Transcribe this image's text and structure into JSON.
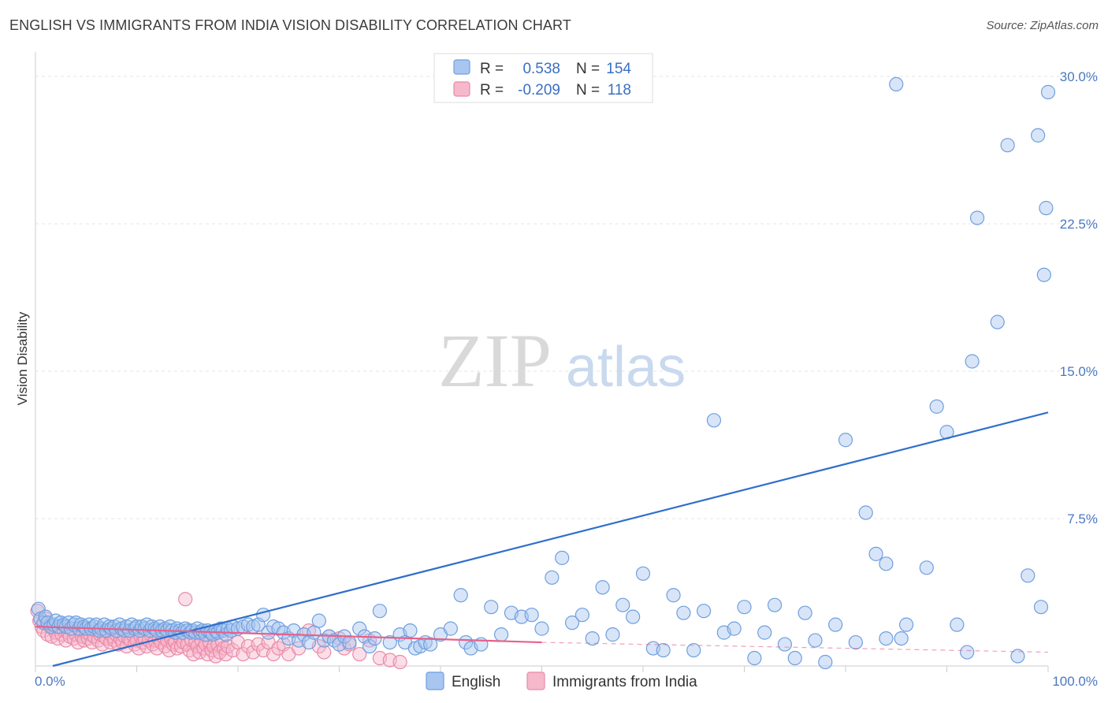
{
  "title": "ENGLISH VS IMMIGRANTS FROM INDIA VISION DISABILITY CORRELATION CHART",
  "source": "Source: ZipAtlas.com",
  "watermark": {
    "zip": "ZIP",
    "atlas": "atlas"
  },
  "colors": {
    "english_fill": "#a9c6f0",
    "english_stroke": "#6f9fde",
    "english_line": "#2f6fcc",
    "india_fill": "#f6b8cb",
    "india_stroke": "#e98aa8",
    "india_line": "#e8608a",
    "grid": "#e5e5e5",
    "tick_label": "#4a78c2"
  },
  "legend": {
    "rows": [
      {
        "r_label": "R =",
        "r_value": "0.538",
        "n_label": "N =",
        "n_value": "154"
      },
      {
        "r_label": "R =",
        "r_value": "-0.209",
        "n_label": "N =",
        "n_value": "118"
      }
    ]
  },
  "bottom_legend": [
    "English",
    "Immigrants from India"
  ],
  "chart_data": {
    "type": "scatter",
    "title": "ENGLISH VS IMMIGRANTS FROM INDIA VISION DISABILITY CORRELATION CHART",
    "xlabel": "",
    "ylabel": "Vision Disability",
    "xlim": [
      0,
      100
    ],
    "ylim": [
      0,
      31
    ],
    "x_tick_labels": [
      "0.0%",
      "100.0%"
    ],
    "y_ticks": [
      7.5,
      15.0,
      22.5,
      30.0
    ],
    "y_tick_labels": [
      "7.5%",
      "15.0%",
      "22.5%",
      "30.0%"
    ],
    "grid": true,
    "legend_position": "top-center",
    "series": [
      {
        "name": "English",
        "r": 0.538,
        "n": 154,
        "trend": {
          "x": [
            0,
            100
          ],
          "y": [
            0.0,
            12.9
          ]
        },
        "points": [
          [
            0.3,
            2.9
          ],
          [
            0.5,
            2.4
          ],
          [
            0.8,
            2.2
          ],
          [
            1.0,
            2.5
          ],
          [
            1.2,
            2.2
          ],
          [
            1.5,
            2.0
          ],
          [
            1.8,
            2.1
          ],
          [
            2.0,
            2.3
          ],
          [
            2.3,
            2.0
          ],
          [
            2.5,
            2.2
          ],
          [
            2.8,
            2.1
          ],
          [
            3.0,
            2.0
          ],
          [
            3.3,
            2.2
          ],
          [
            3.5,
            1.9
          ],
          [
            3.8,
            2.1
          ],
          [
            4.0,
            2.2
          ],
          [
            4.3,
            1.9
          ],
          [
            4.5,
            2.1
          ],
          [
            4.8,
            2.0
          ],
          [
            5.0,
            1.9
          ],
          [
            5.3,
            2.1
          ],
          [
            5.5,
            1.9
          ],
          [
            5.8,
            2.0
          ],
          [
            6.0,
            2.1
          ],
          [
            6.3,
            1.8
          ],
          [
            6.5,
            1.9
          ],
          [
            6.8,
            2.1
          ],
          [
            7.0,
            1.8
          ],
          [
            7.3,
            2.0
          ],
          [
            7.5,
            1.9
          ],
          [
            7.8,
            2.0
          ],
          [
            8.0,
            1.8
          ],
          [
            8.3,
            2.1
          ],
          [
            8.5,
            1.9
          ],
          [
            8.8,
            1.8
          ],
          [
            9.0,
            2.0
          ],
          [
            9.3,
            1.8
          ],
          [
            9.5,
            2.1
          ],
          [
            9.8,
            1.9
          ],
          [
            10.0,
            2.0
          ],
          [
            10.3,
            1.8
          ],
          [
            10.5,
            2.0
          ],
          [
            10.8,
            1.9
          ],
          [
            11.0,
            2.1
          ],
          [
            11.3,
            1.8
          ],
          [
            11.5,
            2.0
          ],
          [
            11.8,
            1.9
          ],
          [
            12.0,
            1.8
          ],
          [
            12.3,
            2.0
          ],
          [
            12.5,
            1.8
          ],
          [
            12.8,
            1.9
          ],
          [
            13.0,
            1.8
          ],
          [
            13.3,
            2.0
          ],
          [
            13.5,
            1.8
          ],
          [
            13.8,
            1.7
          ],
          [
            14.0,
            1.9
          ],
          [
            14.3,
            1.8
          ],
          [
            14.5,
            1.7
          ],
          [
            14.8,
            1.9
          ],
          [
            15.0,
            1.8
          ],
          [
            15.3,
            1.7
          ],
          [
            15.5,
            1.8
          ],
          [
            15.8,
            1.7
          ],
          [
            16.0,
            1.9
          ],
          [
            16.3,
            1.7
          ],
          [
            16.5,
            1.8
          ],
          [
            16.8,
            1.6
          ],
          [
            17.0,
            1.8
          ],
          [
            17.3,
            1.7
          ],
          [
            17.5,
            1.6
          ],
          [
            17.8,
            1.8
          ],
          [
            18.0,
            1.7
          ],
          [
            18.3,
            1.9
          ],
          [
            18.5,
            1.8
          ],
          [
            18.8,
            1.6
          ],
          [
            19.0,
            1.9
          ],
          [
            19.3,
            1.8
          ],
          [
            19.5,
            2.0
          ],
          [
            20.0,
            1.9
          ],
          [
            20.5,
            2.0
          ],
          [
            21.0,
            2.1
          ],
          [
            21.5,
            2.0
          ],
          [
            22.0,
            2.1
          ],
          [
            22.5,
            2.6
          ],
          [
            23.0,
            1.7
          ],
          [
            23.5,
            2.0
          ],
          [
            24.0,
            1.9
          ],
          [
            24.5,
            1.7
          ],
          [
            25.0,
            1.4
          ],
          [
            25.5,
            1.8
          ],
          [
            26.0,
            1.3
          ],
          [
            26.5,
            1.6
          ],
          [
            27.0,
            1.2
          ],
          [
            27.5,
            1.7
          ],
          [
            28.0,
            2.3
          ],
          [
            28.5,
            1.3
          ],
          [
            29.0,
            1.5
          ],
          [
            29.5,
            1.3
          ],
          [
            30.0,
            1.1
          ],
          [
            30.5,
            1.5
          ],
          [
            31.0,
            1.2
          ],
          [
            32.0,
            1.9
          ],
          [
            32.5,
            1.5
          ],
          [
            33.0,
            1.0
          ],
          [
            33.5,
            1.4
          ],
          [
            34.0,
            2.8
          ],
          [
            35.0,
            1.2
          ],
          [
            36.0,
            1.6
          ],
          [
            36.5,
            1.2
          ],
          [
            37.0,
            1.8
          ],
          [
            37.5,
            0.9
          ],
          [
            38.0,
            1.0
          ],
          [
            38.5,
            1.2
          ],
          [
            39.0,
            1.1
          ],
          [
            40.0,
            1.6
          ],
          [
            41.0,
            1.9
          ],
          [
            42.0,
            3.6
          ],
          [
            42.5,
            1.2
          ],
          [
            43.0,
            0.9
          ],
          [
            44.0,
            1.1
          ],
          [
            45.0,
            3.0
          ],
          [
            46.0,
            1.6
          ],
          [
            47.0,
            2.7
          ],
          [
            48.0,
            2.5
          ],
          [
            49.0,
            2.6
          ],
          [
            50.0,
            1.9
          ],
          [
            51.0,
            4.5
          ],
          [
            52.0,
            5.5
          ],
          [
            53.0,
            2.2
          ],
          [
            54.0,
            2.6
          ],
          [
            55.0,
            1.4
          ],
          [
            56.0,
            4.0
          ],
          [
            57.0,
            1.6
          ],
          [
            58.0,
            3.1
          ],
          [
            59.0,
            2.5
          ],
          [
            60.0,
            4.7
          ],
          [
            61.0,
            0.9
          ],
          [
            62.0,
            0.8
          ],
          [
            63.0,
            3.6
          ],
          [
            64.0,
            2.7
          ],
          [
            65.0,
            0.8
          ],
          [
            66.0,
            2.8
          ],
          [
            67.0,
            12.5
          ],
          [
            68.0,
            1.7
          ],
          [
            69.0,
            1.9
          ],
          [
            70.0,
            3.0
          ],
          [
            71.0,
            0.4
          ],
          [
            72.0,
            1.7
          ],
          [
            73.0,
            3.1
          ],
          [
            74.0,
            1.1
          ],
          [
            75.0,
            0.4
          ],
          [
            76.0,
            2.7
          ],
          [
            77.0,
            1.3
          ],
          [
            78.0,
            0.2
          ],
          [
            79.0,
            2.1
          ],
          [
            80.0,
            11.5
          ],
          [
            81.0,
            1.2
          ],
          [
            82.0,
            7.8
          ],
          [
            83.0,
            5.7
          ],
          [
            84.0,
            5.2
          ],
          [
            84.0,
            1.4
          ],
          [
            85.0,
            29.6
          ],
          [
            85.5,
            1.4
          ],
          [
            86.0,
            2.1
          ],
          [
            88.0,
            5.0
          ],
          [
            89.0,
            13.2
          ],
          [
            90.0,
            11.9
          ],
          [
            91.0,
            2.1
          ],
          [
            92.0,
            0.7
          ],
          [
            92.5,
            15.5
          ],
          [
            93.0,
            22.8
          ],
          [
            95.0,
            17.5
          ],
          [
            96.0,
            26.5
          ],
          [
            97.0,
            0.5
          ],
          [
            98.0,
            4.6
          ],
          [
            99.0,
            27.0
          ],
          [
            99.3,
            3.0
          ],
          [
            99.6,
            19.9
          ],
          [
            99.8,
            23.3
          ],
          [
            100.0,
            29.2
          ]
        ]
      },
      {
        "name": "Immigrants from India",
        "r": -0.209,
        "n": 118,
        "trend": {
          "x": [
            0,
            50
          ],
          "y": [
            2.0,
            1.2
          ],
          "dashed_to": [
            100,
            0.7
          ]
        },
        "points": [
          [
            0.2,
            2.8
          ],
          [
            0.4,
            2.3
          ],
          [
            0.6,
            2.0
          ],
          [
            0.8,
            1.8
          ],
          [
            1.0,
            2.4
          ],
          [
            1.2,
            1.6
          ],
          [
            1.4,
            2.1
          ],
          [
            1.6,
            1.5
          ],
          [
            1.8,
            1.9
          ],
          [
            2.0,
            1.7
          ],
          [
            2.2,
            1.4
          ],
          [
            2.4,
            2.0
          ],
          [
            2.6,
            1.6
          ],
          [
            2.8,
            1.8
          ],
          [
            3.0,
            1.3
          ],
          [
            3.2,
            1.7
          ],
          [
            3.4,
            1.5
          ],
          [
            3.6,
            1.9
          ],
          [
            3.8,
            1.4
          ],
          [
            4.0,
            1.6
          ],
          [
            4.2,
            1.2
          ],
          [
            4.4,
            1.8
          ],
          [
            4.6,
            1.5
          ],
          [
            4.8,
            1.3
          ],
          [
            5.0,
            1.7
          ],
          [
            5.2,
            1.4
          ],
          [
            5.4,
            1.6
          ],
          [
            5.6,
            1.2
          ],
          [
            5.8,
            1.5
          ],
          [
            6.0,
            1.8
          ],
          [
            6.2,
            1.3
          ],
          [
            6.4,
            1.6
          ],
          [
            6.6,
            1.1
          ],
          [
            6.8,
            1.5
          ],
          [
            7.0,
            1.4
          ],
          [
            7.2,
            1.7
          ],
          [
            7.4,
            1.2
          ],
          [
            7.6,
            1.5
          ],
          [
            7.8,
            1.3
          ],
          [
            8.0,
            1.6
          ],
          [
            8.2,
            1.1
          ],
          [
            8.4,
            1.4
          ],
          [
            8.6,
            1.2
          ],
          [
            8.8,
            1.5
          ],
          [
            9.0,
            1.0
          ],
          [
            9.2,
            1.4
          ],
          [
            9.4,
            1.3
          ],
          [
            9.6,
            1.6
          ],
          [
            9.8,
            1.1
          ],
          [
            10.0,
            1.3
          ],
          [
            10.2,
            0.9
          ],
          [
            10.4,
            1.5
          ],
          [
            10.6,
            1.2
          ],
          [
            10.8,
            1.4
          ],
          [
            11.0,
            1.0
          ],
          [
            11.2,
            1.3
          ],
          [
            11.4,
            1.6
          ],
          [
            11.6,
            1.1
          ],
          [
            11.8,
            1.3
          ],
          [
            12.0,
            0.9
          ],
          [
            12.2,
            1.4
          ],
          [
            12.4,
            1.2
          ],
          [
            12.6,
            1.5
          ],
          [
            12.8,
            1.0
          ],
          [
            13.0,
            1.3
          ],
          [
            13.2,
            0.8
          ],
          [
            13.4,
            1.4
          ],
          [
            13.6,
            1.1
          ],
          [
            13.8,
            1.2
          ],
          [
            14.0,
            0.9
          ],
          [
            14.2,
            1.5
          ],
          [
            14.4,
            1.0
          ],
          [
            14.6,
            1.2
          ],
          [
            14.8,
            3.4
          ],
          [
            15.0,
            1.1
          ],
          [
            15.2,
            0.8
          ],
          [
            15.4,
            1.3
          ],
          [
            15.6,
            0.6
          ],
          [
            15.8,
            1.2
          ],
          [
            16.0,
            1.0
          ],
          [
            16.2,
            0.7
          ],
          [
            16.4,
            1.3
          ],
          [
            16.6,
            0.9
          ],
          [
            16.8,
            1.1
          ],
          [
            17.0,
            0.6
          ],
          [
            17.2,
            1.2
          ],
          [
            17.4,
            0.8
          ],
          [
            17.6,
            1.0
          ],
          [
            17.8,
            0.5
          ],
          [
            18.0,
            1.1
          ],
          [
            18.2,
            0.7
          ],
          [
            18.4,
            1.3
          ],
          [
            18.6,
            0.9
          ],
          [
            18.8,
            0.6
          ],
          [
            19.0,
            1.0
          ],
          [
            19.5,
            0.8
          ],
          [
            20.0,
            1.2
          ],
          [
            20.5,
            0.6
          ],
          [
            21.0,
            1.0
          ],
          [
            21.5,
            0.7
          ],
          [
            22.0,
            1.1
          ],
          [
            22.5,
            0.8
          ],
          [
            23.0,
            1.2
          ],
          [
            23.5,
            0.6
          ],
          [
            24.0,
            0.9
          ],
          [
            24.5,
            1.1
          ],
          [
            25.0,
            0.6
          ],
          [
            26.0,
            0.9
          ],
          [
            27.0,
            1.8
          ],
          [
            28.0,
            1.0
          ],
          [
            28.5,
            0.7
          ],
          [
            29.0,
            1.5
          ],
          [
            30.0,
            1.4
          ],
          [
            30.5,
            0.9
          ],
          [
            31.0,
            1.1
          ],
          [
            32.0,
            0.6
          ],
          [
            33.0,
            1.3
          ],
          [
            34.0,
            0.4
          ],
          [
            35.0,
            0.3
          ],
          [
            36.0,
            0.2
          ]
        ]
      }
    ]
  }
}
